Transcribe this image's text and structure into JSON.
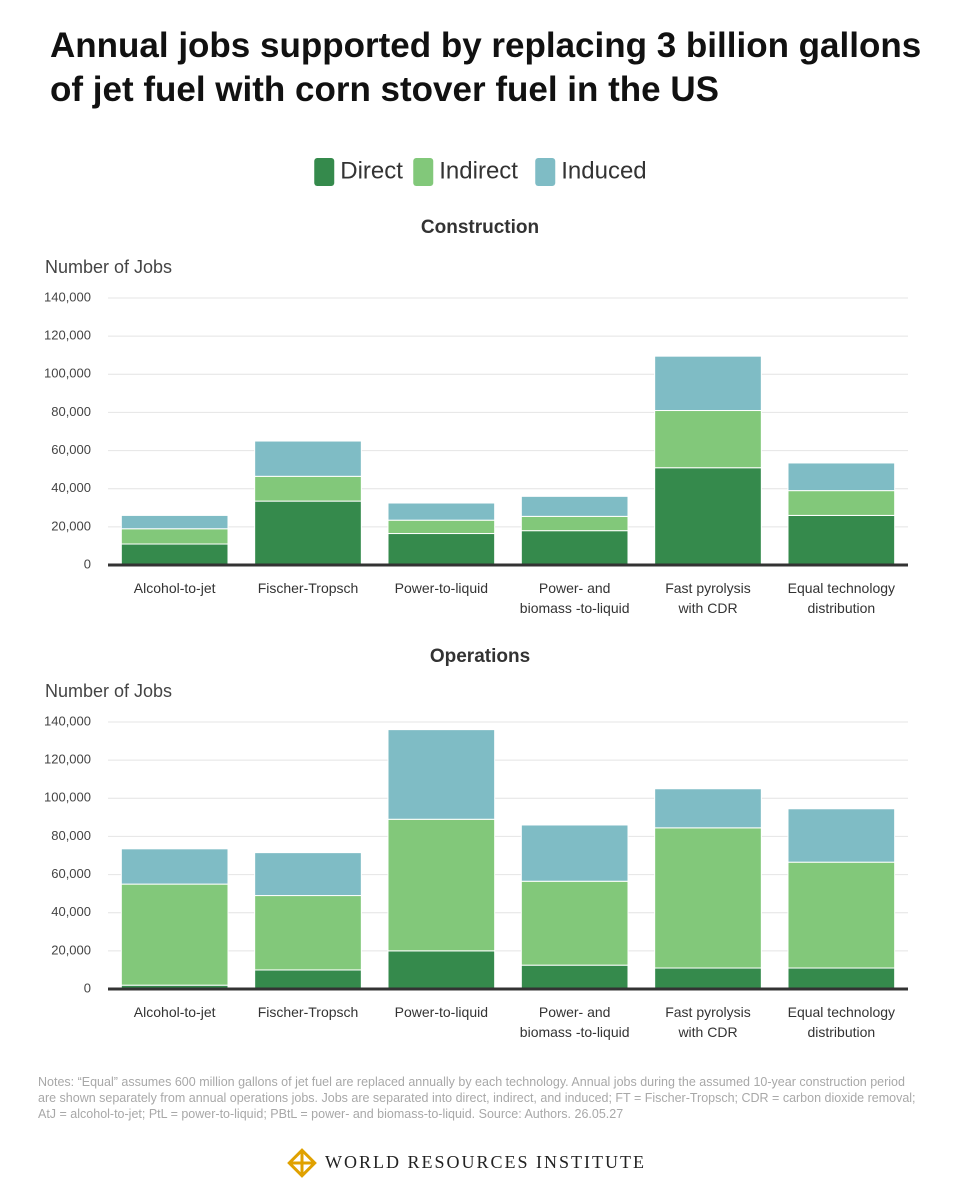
{
  "title": "Annual jobs supported by replacing 3 billion gallons of jet fuel with corn stover fuel in the US",
  "notes": "Notes: “Equal” assumes 600 million gallons of jet fuel are replaced annually by each technology. Annual jobs during the assumed 10-year construction period are shown separately from annual operations jobs. Jobs are separated into direct, indirect, and induced; FT = Fischer-Tropsch; CDR = carbon dioxide removal; AtJ = alcohol-to-jet; PtL = power-to-liquid; PBtL = power- and biomass-to-liquid. Source: Authors. 26.05.27",
  "footer": "WORLD RESOURCES INSTITUTE",
  "chart_data": [
    {
      "type": "bar",
      "stacked": true,
      "title": "Construction",
      "y_label": "Number of Jobs",
      "categories": [
        "Alcohol-to-jet",
        "Fischer-Tropsch",
        "Power-to-liquid",
        "Power- and\nbiomass -to-liquid",
        "Fast pyrolysis\nwith CDR",
        "Equal technology\ndistribution"
      ],
      "series": [
        {
          "name": "Direct",
          "color": "#358a4c",
          "values": [
            11000,
            33500,
            16500,
            18000,
            51000,
            26000
          ]
        },
        {
          "name": "Indirect",
          "color": "#82c87a",
          "values": [
            8000,
            13000,
            7000,
            7500,
            30000,
            13000
          ]
        },
        {
          "name": "Induced",
          "color": "#7fbcc5",
          "values": [
            7000,
            18500,
            9000,
            10500,
            28500,
            14500
          ]
        }
      ],
      "ylim": [
        0,
        140000
      ],
      "yticks": [
        0,
        {
          "value": 20000,
          "label": "20,000"
        },
        {
          "value": 40000,
          "label": "40,000"
        },
        {
          "value": 60000,
          "label": "60,000"
        },
        {
          "value": 80000,
          "label": "80,000"
        },
        {
          "value": 100000,
          "label": "100,000"
        },
        {
          "value": 120000,
          "label": "120,000"
        },
        {
          "value": 140000,
          "label": "140,000"
        }
      ],
      "grid": true,
      "legend": "top"
    },
    {
      "type": "bar",
      "stacked": true,
      "title": "Operations",
      "y_label": "Number of Jobs",
      "categories": [
        "Alcohol-to-jet",
        "Fischer-Tropsch",
        "Power-to-liquid",
        "Power- and\nbiomass -to-liquid",
        "Fast pyrolysis\nwith CDR",
        "Equal technology\ndistribution"
      ],
      "series": [
        {
          "color": "#358a4c",
          "values": [
            2000,
            10000,
            20000,
            12500,
            11000,
            11000
          ]
        },
        {
          "color": "#82c87a",
          "values": [
            53000,
            39000,
            69000,
            44000,
            73500,
            55500
          ]
        },
        {
          "color": "#7fbcc5",
          "values": [
            18500,
            22500,
            47000,
            29500,
            20500,
            28000
          ]
        }
      ],
      "ylim": [
        0,
        140000
      ],
      "yticks": [
        0,
        {
          "value": 20000,
          "label": "20,000"
        },
        {
          "value": 40000,
          "label": "40,000"
        },
        {
          "value": 60000,
          "label": "60,000"
        },
        {
          "value": 80000,
          "label": "80,000"
        },
        {
          "value": 100000,
          "label": "100,000"
        },
        {
          "value": 120000,
          "label": "120,000"
        },
        {
          "value": 140000,
          "label": "140,000"
        }
      ],
      "grid": true
    }
  ]
}
